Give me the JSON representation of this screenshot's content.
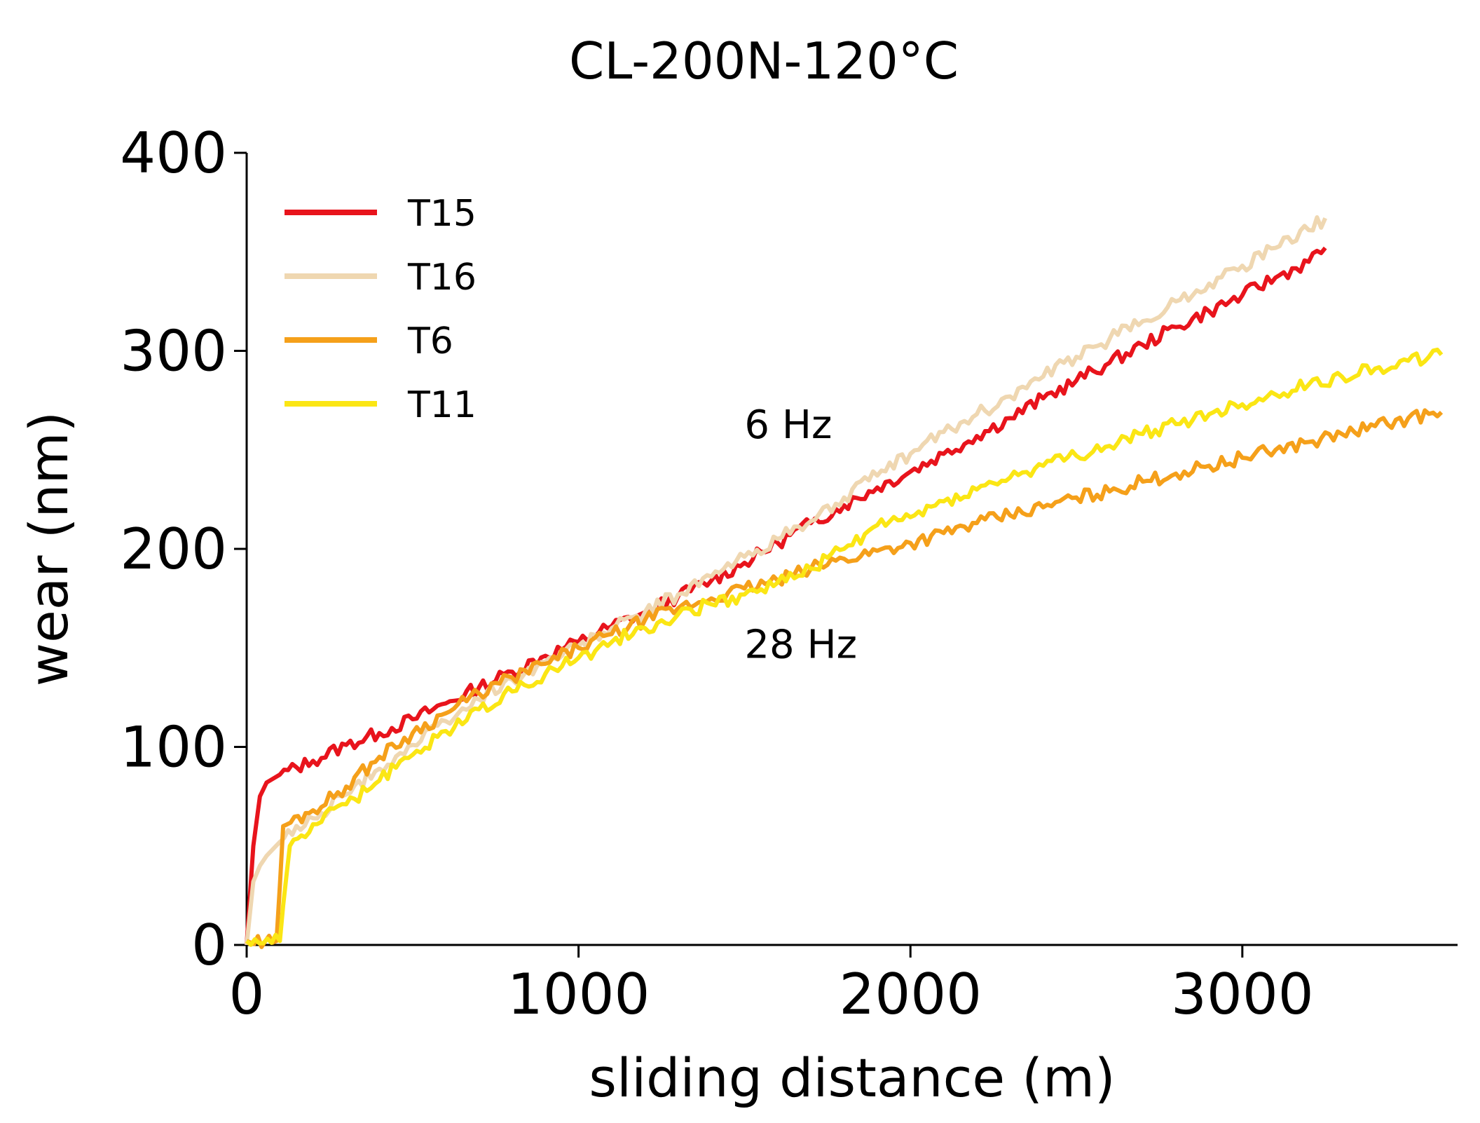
{
  "chart_data": {
    "type": "line",
    "title": "CL-200N-120°C",
    "xlabel": "sliding distance (m)",
    "ylabel": "wear (nm)",
    "xlim": [
      0,
      3700
    ],
    "ylim": [
      0,
      400
    ],
    "xticks": [
      0,
      1000,
      2000,
      3000
    ],
    "yticks": [
      0,
      100,
      200,
      300,
      400
    ],
    "grid": false,
    "legend_position": "top-left",
    "annotations": [
      {
        "text": "6 Hz",
        "x": 1500,
        "y": 256
      },
      {
        "text": "28 Hz",
        "x": 1500,
        "y": 145
      }
    ],
    "series": [
      {
        "name": "T15",
        "color": "#e8141c",
        "x": [
          0,
          20,
          40,
          60,
          100,
          200,
          300,
          400,
          500,
          600,
          700,
          800,
          900,
          1000,
          1100,
          1200,
          1300,
          1400,
          1500,
          1600,
          1700,
          1800,
          1900,
          2000,
          2100,
          2200,
          2300,
          2400,
          2500,
          2600,
          2700,
          2800,
          2900,
          3000,
          3100,
          3200,
          3250
        ],
        "y": [
          0,
          50,
          75,
          82,
          86,
          93,
          101,
          107,
          114,
          122,
          130,
          138,
          146,
          153,
          161,
          168,
          176,
          184,
          193,
          203,
          213,
          222,
          231,
          239,
          248,
          257,
          266,
          276,
          285,
          294,
          303,
          312,
          320,
          328,
          337,
          345,
          352
        ]
      },
      {
        "name": "T16",
        "color": "#efd7b1",
        "x": [
          0,
          20,
          40,
          60,
          100,
          200,
          300,
          400,
          500,
          600,
          700,
          800,
          900,
          1000,
          1100,
          1200,
          1300,
          1400,
          1500,
          1600,
          1700,
          1800,
          1900,
          2000,
          2100,
          2200,
          2300,
          2400,
          2500,
          2600,
          2700,
          2800,
          2900,
          3000,
          3100,
          3200,
          3250
        ],
        "y": [
          0,
          32,
          40,
          45,
          52,
          64,
          76,
          89,
          101,
          113,
          124,
          134,
          143,
          151,
          160,
          168,
          177,
          186,
          196,
          205,
          214,
          226,
          237,
          248,
          259,
          268,
          277,
          287,
          297,
          306,
          315,
          325,
          334,
          343,
          352,
          361,
          367
        ]
      },
      {
        "name": "T6",
        "color": "#f5a01a",
        "x": [
          0,
          90,
          100,
          110,
          200,
          300,
          400,
          500,
          600,
          700,
          800,
          900,
          1000,
          1100,
          1200,
          1300,
          1400,
          1500,
          1600,
          1700,
          1800,
          1900,
          2000,
          2100,
          2200,
          2300,
          2400,
          2500,
          2600,
          2700,
          2800,
          2900,
          3000,
          3100,
          3200,
          3300,
          3400,
          3500,
          3600
        ],
        "y": [
          2,
          2,
          30,
          60,
          68,
          80,
          95,
          107,
          117,
          127,
          135,
          142,
          150,
          157,
          164,
          170,
          175,
          180,
          184,
          190,
          195,
          199,
          203,
          208,
          213,
          217,
          221,
          226,
          229,
          234,
          238,
          242,
          246,
          250,
          254,
          258,
          262,
          266,
          269
        ]
      },
      {
        "name": "T11",
        "color": "#fbe614",
        "x": [
          0,
          100,
          110,
          130,
          200,
          300,
          400,
          500,
          600,
          700,
          800,
          900,
          1000,
          1100,
          1200,
          1300,
          1400,
          1500,
          1600,
          1700,
          1800,
          1900,
          2000,
          2100,
          2200,
          2300,
          2400,
          2500,
          2600,
          2700,
          2800,
          2900,
          3000,
          3100,
          3200,
          3300,
          3400,
          3500,
          3600
        ],
        "y": [
          2,
          2,
          20,
          50,
          61,
          71,
          83,
          96,
          108,
          119,
          128,
          137,
          145,
          153,
          160,
          167,
          172,
          177,
          183,
          190,
          200,
          212,
          216,
          224,
          230,
          236,
          242,
          247,
          252,
          258,
          263,
          268,
          273,
          278,
          283,
          287,
          291,
          295,
          298
        ]
      }
    ]
  }
}
